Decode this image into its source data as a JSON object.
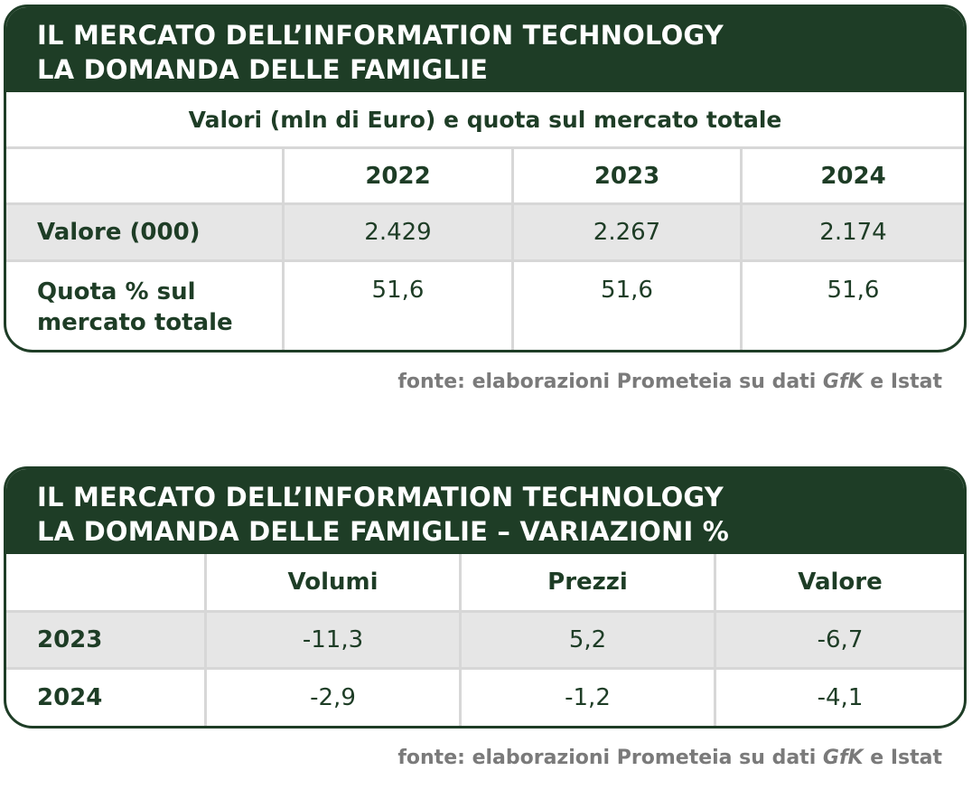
{
  "table1": {
    "title_line1": "IL MERCATO DELL’INFORMATION TECHNOLOGY",
    "title_line2": "LA DOMANDA DELLE FAMIGLIE",
    "subtitle": "Valori (mln di Euro) e quota sul mercato totale",
    "columns": [
      "2022",
      "2023",
      "2024"
    ],
    "rows": [
      {
        "label": "Valore (000)",
        "values": [
          "2.429",
          "2.267",
          "2.174"
        ]
      },
      {
        "label_line1": "Quota % sul",
        "label_line2": "mercato totale",
        "values": [
          "51,6",
          "51,6",
          "51,6"
        ]
      }
    ],
    "source_prefix": "fonte: elaborazioni Prometeia su dati ",
    "source_brand": "GfK",
    "source_suffix": " e Istat"
  },
  "table2": {
    "title_line1": "IL MERCATO DELL’INFORMATION TECHNOLOGY",
    "title_line2": "LA DOMANDA DELLE FAMIGLIE – VARIAZIONI %",
    "columns": [
      "Volumi",
      "Prezzi",
      "Valore"
    ],
    "rows": [
      {
        "label": "2023",
        "values": [
          "-11,3",
          "5,2",
          "-6,7"
        ]
      },
      {
        "label": "2024",
        "values": [
          "-2,9",
          "-1,2",
          "-4,1"
        ]
      }
    ],
    "source_prefix": "fonte: elaborazioni Prometeia su dati ",
    "source_brand": "GfK",
    "source_suffix": " e Istat"
  },
  "colors": {
    "header_bg": "#1e3d26",
    "shaded_row": "#e6e6e6",
    "divider": "#d7d7d7",
    "source_text": "#7a7a7a"
  }
}
